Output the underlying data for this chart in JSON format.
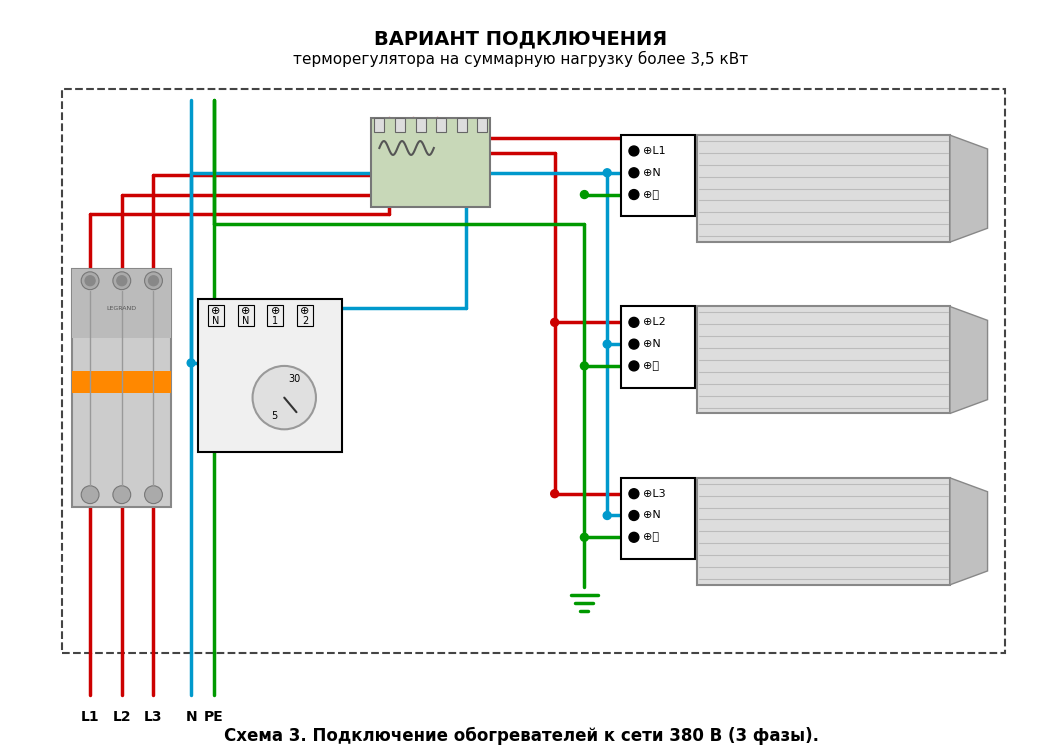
{
  "title_line1": "ВАРИАНТ ПОДКЛЮЧЕНИЯ",
  "title_line2": "терморегулятора на суммарную нагрузку более 3,5 кВт",
  "caption": "Схема 3. Подключение обогревателей к сети 380 В (3 фазы).",
  "labels_bottom": [
    "L1",
    "L2",
    "L3",
    "N",
    "PE"
  ],
  "heater_labels": [
    [
      "⊕L1",
      "⊕N",
      "⊕⏚"
    ],
    [
      "⊕L2",
      "⊕N",
      "⊕⏚"
    ],
    [
      "⊕L3",
      "⊕N",
      "⊕⏚"
    ]
  ],
  "bg_color": "#ffffff",
  "RED": "#cc0000",
  "BLUE": "#0099cc",
  "GREEN": "#009900"
}
